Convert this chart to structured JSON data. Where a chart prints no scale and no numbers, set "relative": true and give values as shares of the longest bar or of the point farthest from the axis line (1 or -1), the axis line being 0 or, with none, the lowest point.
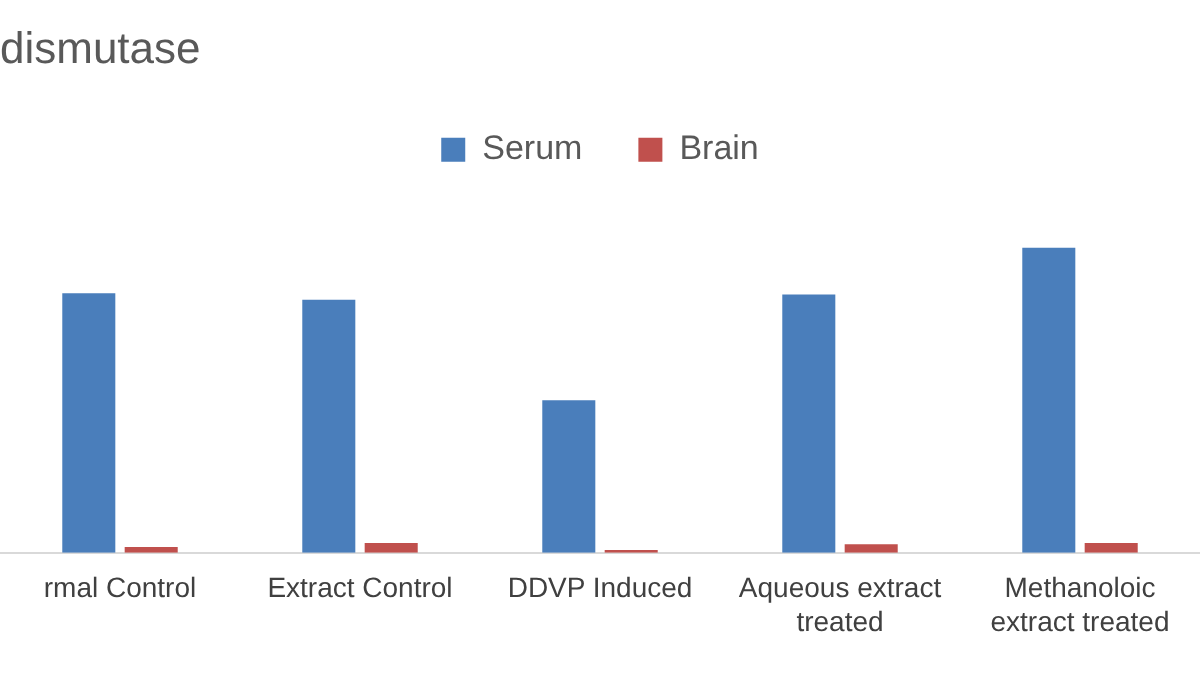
{
  "chart_data": {
    "type": "bar",
    "title": "dismutase",
    "relative": true,
    "legend": "top",
    "grid": false,
    "categories": [
      "rmal Control",
      "Extract Control",
      "DDVP Induced",
      "Aqueous extract treated",
      "Methanoloic extract treated"
    ],
    "series": [
      {
        "name": "Serum",
        "color": "#4a7ebb",
        "values": [
          0.851,
          0.83,
          0.5,
          0.847,
          1
        ]
      },
      {
        "name": "Brain",
        "color": "#c0504d",
        "values": [
          0.019,
          0.032,
          0.009,
          0.028,
          0.032
        ]
      }
    ]
  }
}
